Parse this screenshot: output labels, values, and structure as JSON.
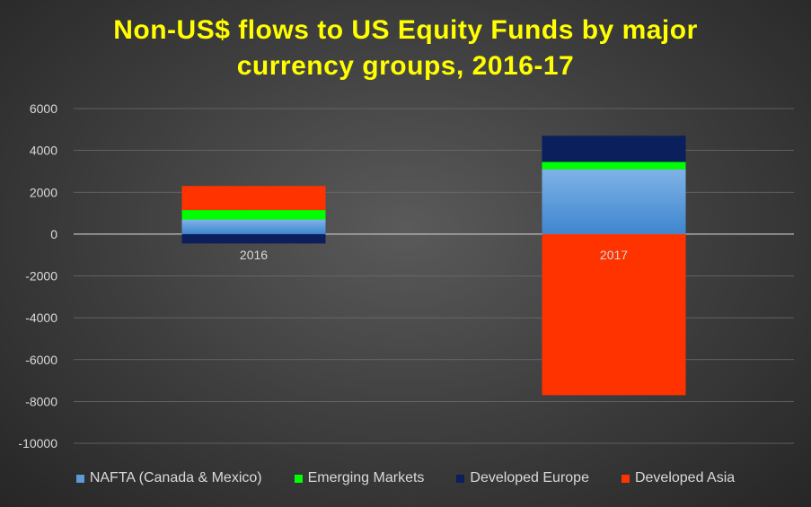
{
  "chart_data": {
    "type": "bar",
    "stacked": true,
    "title_lines": [
      "Non-US$ flows to US Equity Funds by major",
      "currency groups, 2016-17"
    ],
    "categories": [
      "2016",
      "2017"
    ],
    "ylim": [
      -10000,
      6000
    ],
    "yticks": [
      6000,
      4000,
      2000,
      0,
      -2000,
      -4000,
      -6000,
      -8000,
      -10000
    ],
    "grid": true,
    "legend_position": "bottom",
    "series": [
      {
        "name": "NAFTA (Canada & Mexico)",
        "color": "#5b9bd5",
        "values": [
          700,
          3100
        ]
      },
      {
        "name": "Emerging Markets",
        "color": "#00ff00",
        "values": [
          450,
          350
        ]
      },
      {
        "name": "Developed Europe",
        "color": "#0a1f5c",
        "values": [
          -450,
          1250
        ]
      },
      {
        "name": "Developed Asia",
        "color": "#ff3300",
        "values": [
          1150,
          -7700
        ]
      }
    ]
  }
}
